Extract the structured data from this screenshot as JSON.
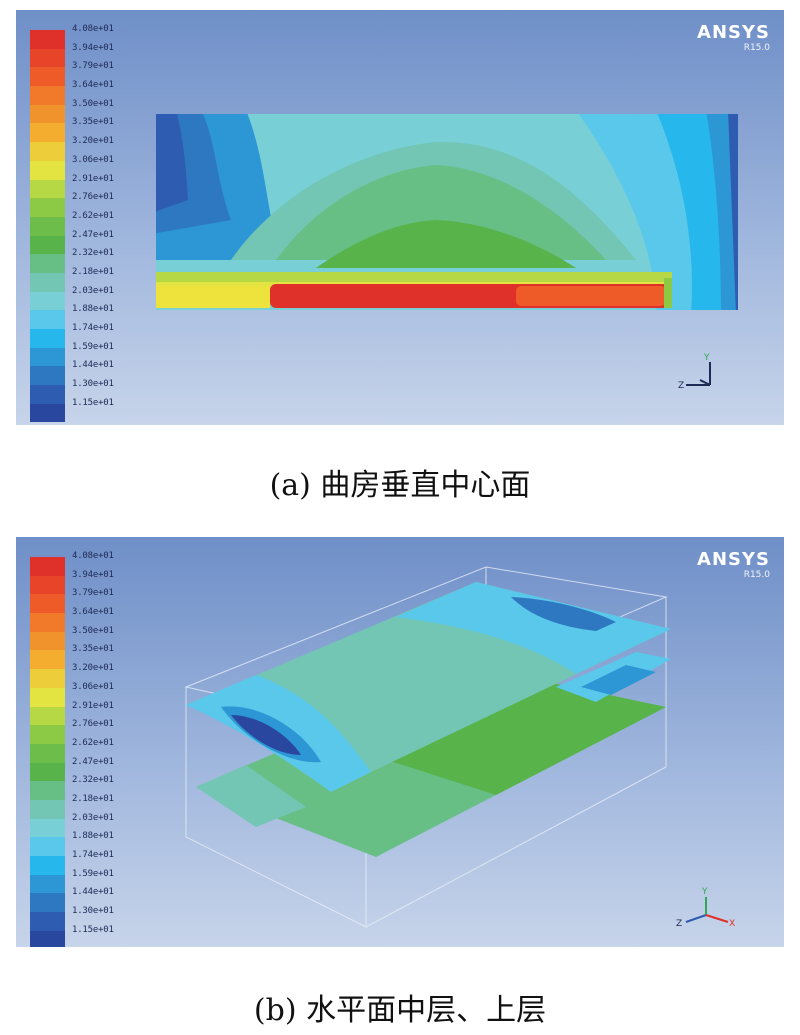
{
  "legend": {
    "labels": [
      "4.08e+01",
      "3.94e+01",
      "3.79e+01",
      "3.64e+01",
      "3.50e+01",
      "3.35e+01",
      "3.20e+01",
      "3.06e+01",
      "2.91e+01",
      "2.76e+01",
      "2.62e+01",
      "2.47e+01",
      "2.32e+01",
      "2.18e+01",
      "2.03e+01",
      "1.88e+01",
      "1.74e+01",
      "1.59e+01",
      "1.44e+01",
      "1.30e+01",
      "1.15e+01"
    ],
    "colors": [
      "#e0302a",
      "#e8442a",
      "#ee5a28",
      "#f07a2a",
      "#f1932c",
      "#f4ad2e",
      "#eecd3a",
      "#e3e341",
      "#b6d844",
      "#8cc945",
      "#6cbd4a",
      "#57b34a",
      "#68bf86",
      "#72c6b3",
      "#78cfd6",
      "#5ac8ea",
      "#26b7ec",
      "#2d96d4",
      "#2e78c2",
      "#2d5cb0",
      "#2a47a0"
    ]
  },
  "brand": {
    "name": "ANSYS",
    "version": "R15.0"
  },
  "panels": [
    {
      "caption": "(a) 曲房垂直中心面"
    },
    {
      "caption": "(b) 水平面中层、上层"
    }
  ],
  "colors": {
    "bg_top": "#6f8fc8",
    "bg_bottom": "#c7d4ea"
  }
}
